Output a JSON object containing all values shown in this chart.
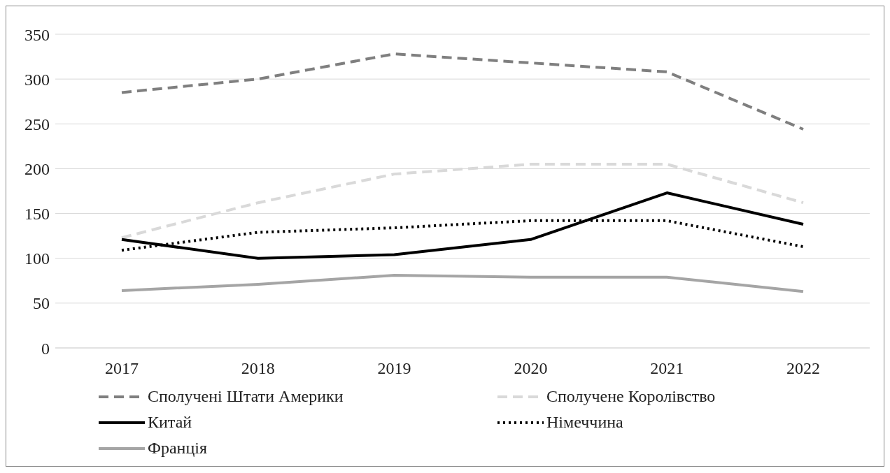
{
  "chart_data": {
    "type": "line",
    "categories": [
      "2017",
      "2018",
      "2019",
      "2020",
      "2021",
      "2022"
    ],
    "series": [
      {
        "name": "Сполучені Штати Америки",
        "color": "#7f7f7f",
        "line_style": "dashed",
        "values": [
          285,
          300,
          328,
          318,
          308,
          244
        ]
      },
      {
        "name": "Сполучене Королівство",
        "color": "#d9d9d9",
        "line_style": "dashed",
        "values": [
          123,
          162,
          194,
          205,
          205,
          162
        ]
      },
      {
        "name": "Китай",
        "color": "#000000",
        "line_style": "solid",
        "values": [
          121,
          100,
          104,
          121,
          173,
          138
        ]
      },
      {
        "name": "Німеччина",
        "color": "#000000",
        "line_style": "dotted",
        "values": [
          109,
          129,
          134,
          142,
          142,
          113
        ]
      },
      {
        "name": "Франція",
        "color": "#a5a5a5",
        "line_style": "solid",
        "values": [
          64,
          71,
          81,
          79,
          79,
          63
        ]
      }
    ],
    "ylim": [
      0,
      350
    ],
    "yticks": [
      0,
      50,
      100,
      150,
      200,
      250,
      300,
      350
    ],
    "grid": "y",
    "legend": "bottom",
    "marker": "none"
  }
}
